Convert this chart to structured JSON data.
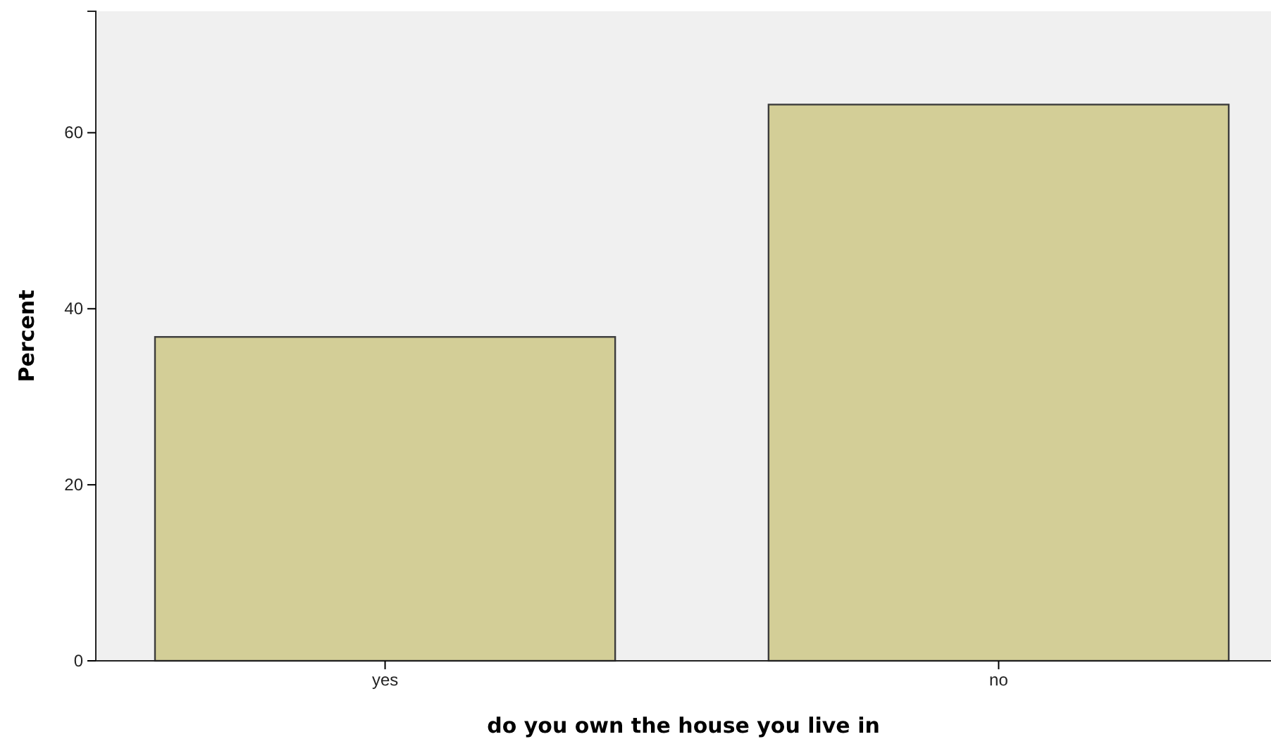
{
  "chart_data": {
    "type": "bar",
    "xlabel": "do you own the house you live in",
    "ylabel": "Percent",
    "categories": [
      "yes",
      "no"
    ],
    "values": [
      36.8,
      63.2
    ],
    "color": "#d3ce97",
    "ylim": [
      0,
      73.8
    ],
    "yticks": [
      0,
      20,
      40,
      60
    ],
    "grid": false
  }
}
